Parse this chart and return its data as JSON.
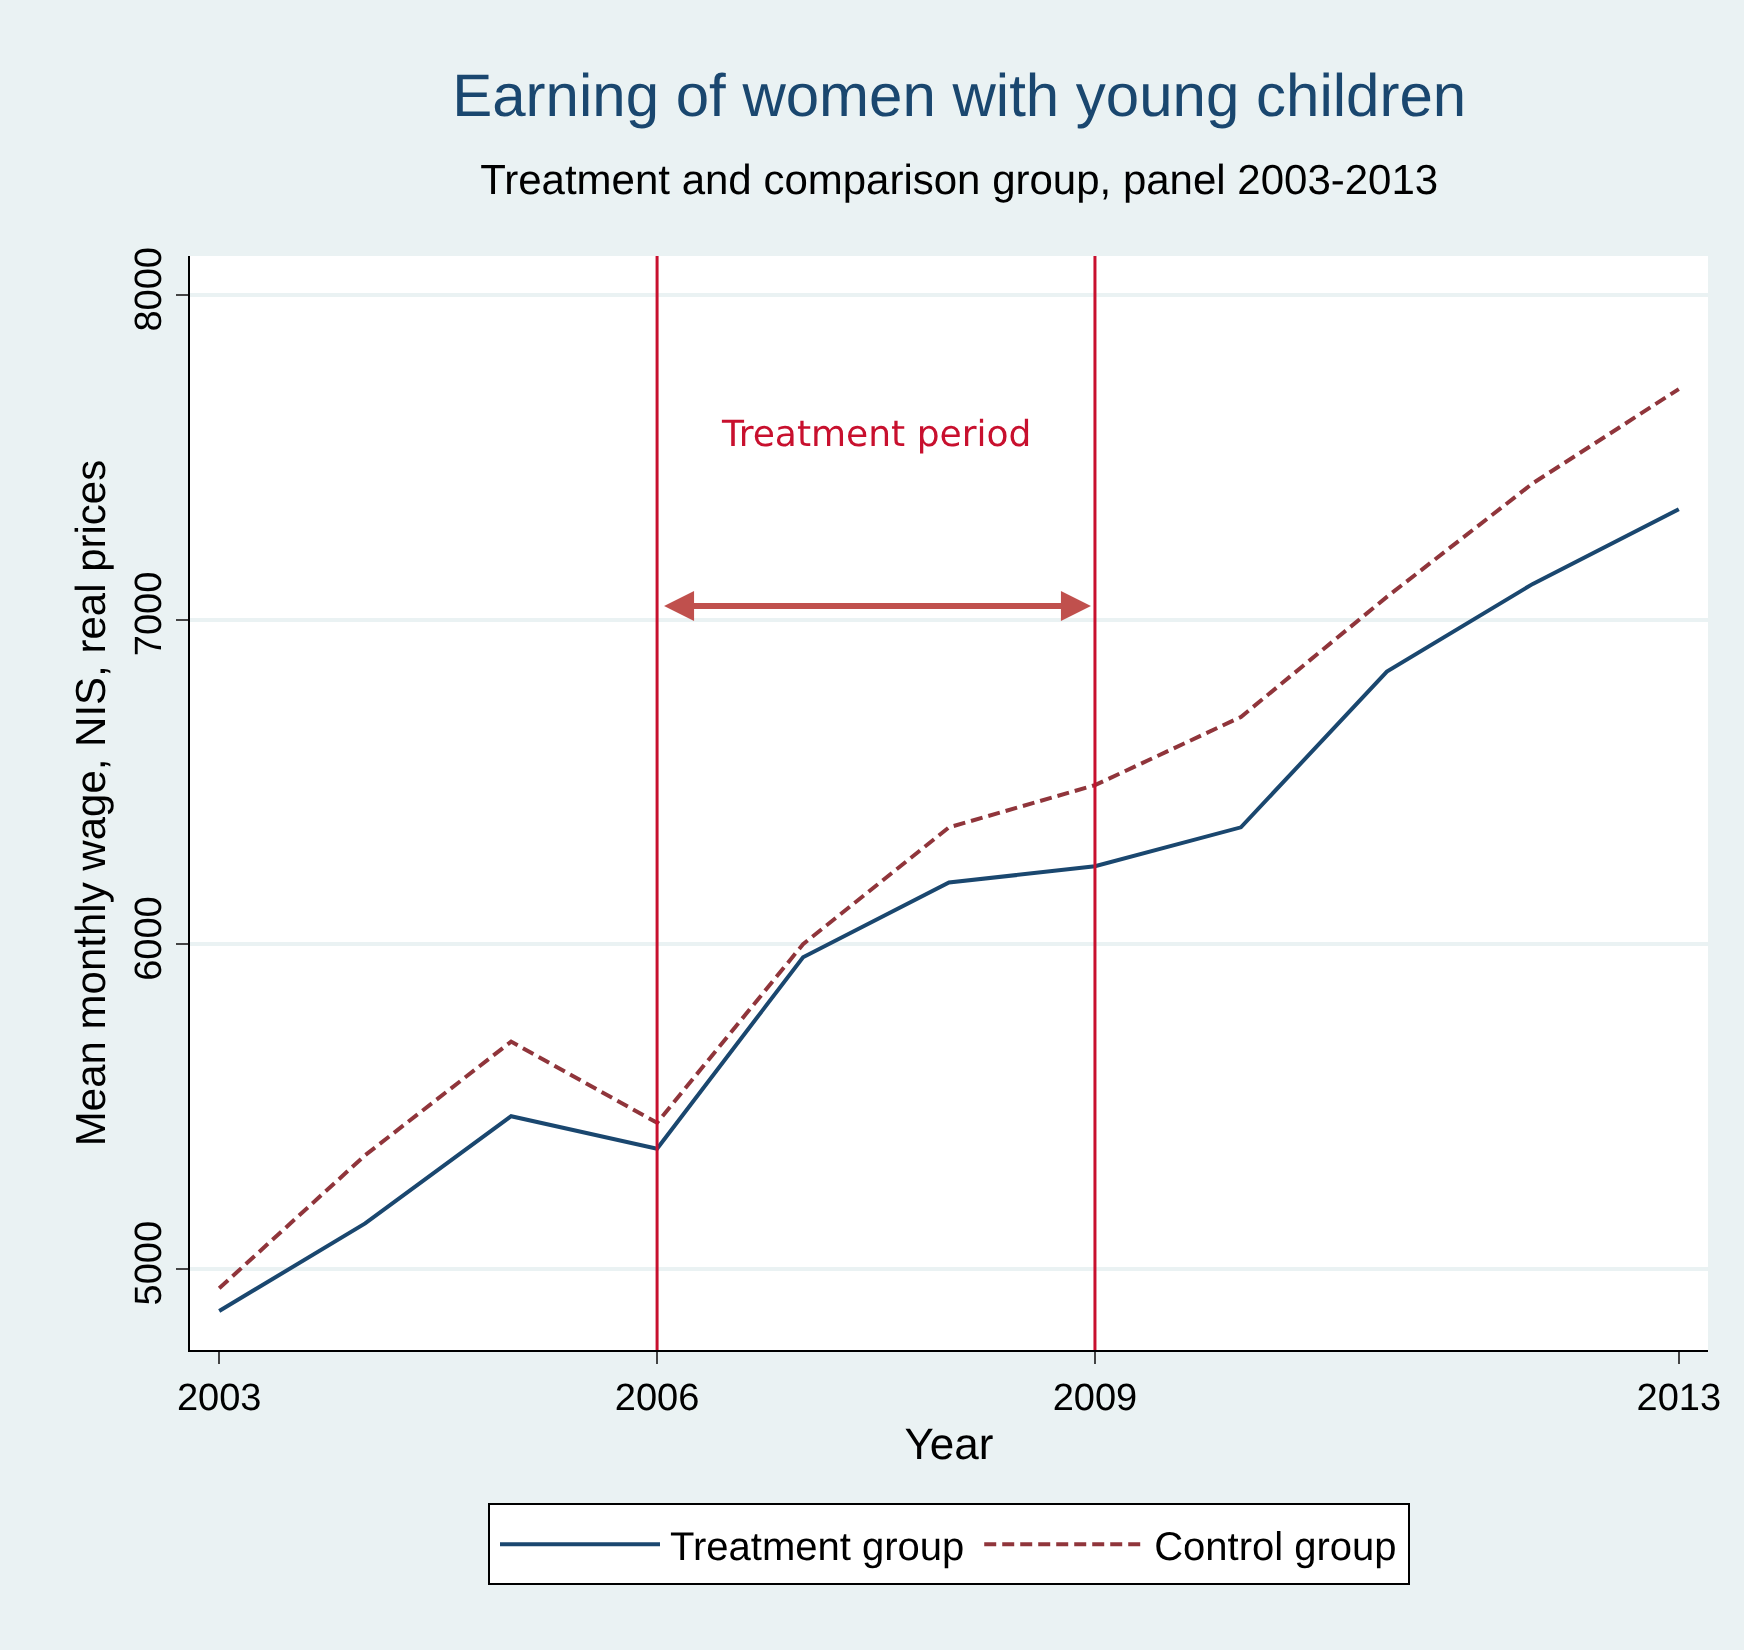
{
  "chart_data": {
    "type": "line",
    "title": "Earning of women with young children",
    "subtitle": "Treatment and comparison group, panel 2003-2013",
    "xlabel": "Year",
    "ylabel": "Mean monthly wage, NIS, real prices",
    "x": [
      2003,
      2004,
      2005,
      2006,
      2007,
      2008,
      2009,
      2010,
      2011,
      2012,
      2013
    ],
    "series": [
      {
        "name": "Treatment group",
        "color": "#1a476f",
        "line_style": "solid",
        "values": [
          4870,
          5140,
          5470,
          5370,
          5960,
          6190,
          6240,
          6360,
          6840,
          7110,
          7340
        ]
      },
      {
        "name": "Control group",
        "color": "#90353b",
        "line_style": "dashed",
        "values": [
          4940,
          5350,
          5700,
          5450,
          6000,
          6360,
          6490,
          6700,
          7070,
          7420,
          7710
        ]
      }
    ],
    "xlim": [
      2002.8,
      2013.2
    ],
    "xticks": [
      2003,
      2006,
      2009,
      2013
    ],
    "ylim": [
      4750,
      8120
    ],
    "yticks": [
      5000,
      6000,
      7000,
      8000
    ],
    "ref_lines": [
      {
        "axis": "x",
        "value": 2006,
        "color": "#c8102e"
      },
      {
        "axis": "x",
        "value": 2009,
        "color": "#c8102e"
      }
    ],
    "annotations": [
      "Treatment period"
    ],
    "grid": "y",
    "legend": "bottom",
    "marker": "none"
  }
}
